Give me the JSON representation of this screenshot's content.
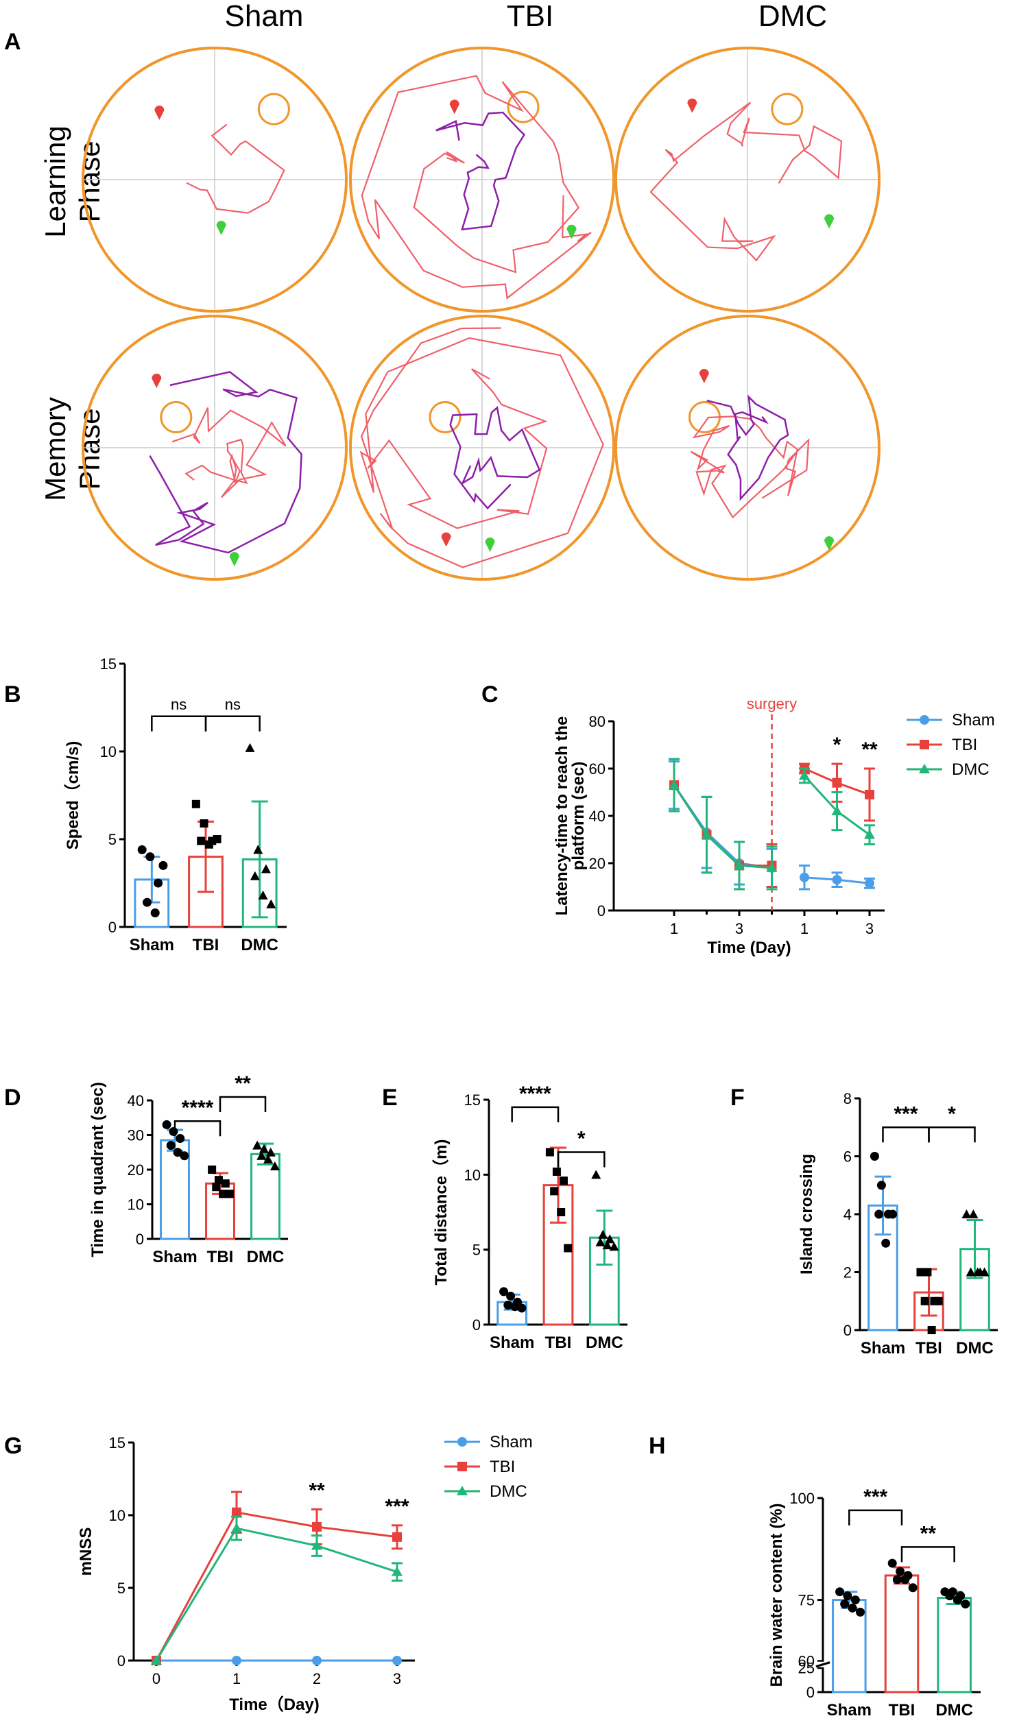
{
  "columns": [
    "Sham",
    "TBI",
    "DMC"
  ],
  "rows": [
    [
      "Learning",
      "Phase"
    ],
    [
      "Memory",
      "Phase"
    ]
  ],
  "panel_labels": {
    "A": "A",
    "B": "B",
    "C": "C",
    "D": "D",
    "E": "E",
    "F": "F",
    "G": "G",
    "H": "H"
  },
  "colors": {
    "Sham": "#4a9ee8",
    "TBI": "#e8413c",
    "DMC": "#1fb77a",
    "pool": "#f0962a",
    "path1": "#f0606a",
    "path2": "#8d1fa8",
    "start": "#e8413c",
    "end": "#3fcf3a"
  },
  "chart_data": [
    {
      "id": "B",
      "type": "bar",
      "ylabel": "Speed（cm/s)",
      "ylim": [
        0,
        15
      ],
      "yticks": [
        "0",
        "5",
        "10",
        "15"
      ],
      "categories": [
        "Sham",
        "TBI",
        "DMC"
      ],
      "values": [
        2.7,
        4.0,
        3.85
      ],
      "err": [
        1.3,
        2.0,
        3.3
      ],
      "points": [
        [
          4.4,
          4.0,
          2.5,
          1.4,
          0.8,
          3.5
        ],
        [
          7.0,
          5.9,
          4.9,
          4.9,
          4.7,
          5.0
        ],
        [
          10.2,
          4.4,
          3.3,
          2.9,
          1.8,
          1.3
        ]
      ],
      "markers": [
        "circle",
        "square",
        "triangle"
      ],
      "sig": [
        {
          "from": 0,
          "to": 1,
          "y": 12,
          "label": "ns"
        },
        {
          "from": 1,
          "to": 2,
          "y": 12,
          "label": "ns"
        }
      ]
    },
    {
      "id": "C",
      "type": "line",
      "ylabel": "Latency-time to reach the platform (sec)",
      "xlabel": "Time (Day)",
      "ylim": [
        0,
        80
      ],
      "yticks": [
        "0",
        "20",
        "40",
        "60",
        "80"
      ],
      "xticklabels": [
        "1",
        "3",
        "1",
        "3"
      ],
      "annotation": "surgery",
      "legend": [
        "Sham",
        "TBI",
        "DMC"
      ],
      "series": [
        {
          "name": "Sham",
          "values": [
            53,
            33,
            20,
            18,
            14,
            13,
            11.5
          ],
          "err": [
            10,
            15,
            9,
            8,
            5,
            3,
            2
          ]
        },
        {
          "name": "TBI",
          "values": [
            53,
            32,
            19,
            19,
            60,
            54,
            49
          ],
          "err": [
            11,
            16,
            10,
            9,
            2,
            8,
            11
          ]
        },
        {
          "name": "DMC",
          "values": [
            53,
            32,
            19,
            18,
            57,
            42,
            32
          ],
          "err": [
            11,
            16,
            10,
            9,
            3,
            8,
            4
          ]
        }
      ],
      "stars": [
        {
          "day": 5,
          "label": "*"
        },
        {
          "day": 6,
          "label": "**"
        }
      ]
    },
    {
      "id": "D",
      "type": "bar",
      "ylabel": "Time in quadrant (sec)",
      "ylim": [
        0,
        40
      ],
      "yticks": [
        "0",
        "10",
        "20",
        "30",
        "40"
      ],
      "categories": [
        "Sham",
        "TBI",
        "DMC"
      ],
      "values": [
        28.5,
        16.0,
        24.5
      ],
      "err": [
        3,
        3,
        3
      ],
      "points": [
        [
          33,
          31,
          29,
          27,
          25,
          24
        ],
        [
          20,
          17,
          16,
          15,
          13,
          13
        ],
        [
          27,
          26,
          25,
          24,
          23,
          21
        ]
      ],
      "markers": [
        "circle",
        "square",
        "triangle"
      ],
      "sig": [
        {
          "from": 0,
          "to": 1,
          "y": 34,
          "label": "****"
        },
        {
          "from": 1,
          "to": 2,
          "y": 41,
          "label": "**"
        }
      ]
    },
    {
      "id": "E",
      "type": "bar",
      "ylabel": "Total distance（m)",
      "ylim": [
        0,
        15
      ],
      "yticks": [
        "0",
        "5",
        "10",
        "15"
      ],
      "categories": [
        "Sham",
        "TBI",
        "DMC"
      ],
      "values": [
        1.5,
        9.3,
        5.8
      ],
      "err": [
        0.5,
        2.5,
        1.8
      ],
      "points": [
        [
          2.2,
          1.9,
          1.5,
          1.3,
          1.2,
          1.1
        ],
        [
          11.5,
          10.2,
          9.6,
          8.9,
          7.5,
          5.1
        ],
        [
          10.0,
          6.0,
          5.7,
          5.5,
          5.3,
          5.2
        ]
      ],
      "markers": [
        "circle",
        "square",
        "triangle"
      ],
      "sig": [
        {
          "from": 0,
          "to": 1,
          "y": 14.5,
          "label": "****"
        },
        {
          "from": 1,
          "to": 2,
          "y": 11.5,
          "label": "*"
        }
      ]
    },
    {
      "id": "F",
      "type": "bar",
      "ylabel": "Island crossing",
      "ylim": [
        0,
        8
      ],
      "yticks": [
        "0",
        "2",
        "4",
        "6",
        "8"
      ],
      "categories": [
        "Sham",
        "TBI",
        "DMC"
      ],
      "values": [
        4.3,
        1.3,
        2.8
      ],
      "err": [
        1.0,
        0.8,
        1.0
      ],
      "points": [
        [
          6,
          5,
          4,
          4,
          3,
          4
        ],
        [
          2,
          2,
          1,
          1,
          0,
          1
        ],
        [
          4,
          4,
          2,
          2,
          2,
          2
        ]
      ],
      "markers": [
        "circle",
        "square",
        "triangle"
      ],
      "sig": [
        {
          "from": 0,
          "to": 1,
          "y": 7,
          "label": "***"
        },
        {
          "from": 1,
          "to": 2,
          "y": 7,
          "label": "*"
        }
      ]
    },
    {
      "id": "G",
      "type": "line",
      "ylabel": "mNSS",
      "xlabel": "Time（Day)",
      "ylim": [
        0,
        15
      ],
      "yticks": [
        "0",
        "5",
        "10",
        "15"
      ],
      "xticklabels": [
        "0",
        "1",
        "2",
        "3"
      ],
      "legend": [
        "Sham",
        "TBI",
        "DMC"
      ],
      "series": [
        {
          "name": "Sham",
          "values": [
            0,
            0,
            0,
            0
          ],
          "err": [
            0,
            0,
            0,
            0
          ]
        },
        {
          "name": "TBI",
          "values": [
            0,
            10.2,
            9.2,
            8.5
          ],
          "err": [
            0,
            1.4,
            1.2,
            0.8
          ]
        },
        {
          "name": "DMC",
          "values": [
            0,
            9.1,
            7.9,
            6.1
          ],
          "err": [
            0,
            0.8,
            0.7,
            0.6
          ]
        }
      ],
      "stars": [
        {
          "day": 2,
          "label": "**"
        },
        {
          "day": 3,
          "label": "***"
        }
      ]
    },
    {
      "id": "H",
      "type": "bar",
      "ylabel": "Brain water content (%)",
      "ylim": [
        0,
        100
      ],
      "axis_break": [
        25,
        60
      ],
      "yticks": [
        "0",
        "25",
        "60",
        "75",
        "100"
      ],
      "categories": [
        "Sham",
        "TBI",
        "DMC"
      ],
      "values": [
        75,
        81,
        75.5
      ],
      "err": [
        2,
        2,
        1.5
      ],
      "points": [
        [
          77,
          76,
          75,
          74,
          73,
          72
        ],
        [
          84,
          82,
          81,
          80,
          80,
          78
        ],
        [
          77,
          77,
          76,
          76,
          75,
          74
        ]
      ],
      "markers": [
        "circle",
        "circle",
        "circle"
      ],
      "sig": [
        {
          "from": 0,
          "to": 1,
          "y": 97,
          "label": "***"
        },
        {
          "from": 1,
          "to": 2,
          "y": 88,
          "label": "**"
        }
      ]
    }
  ]
}
